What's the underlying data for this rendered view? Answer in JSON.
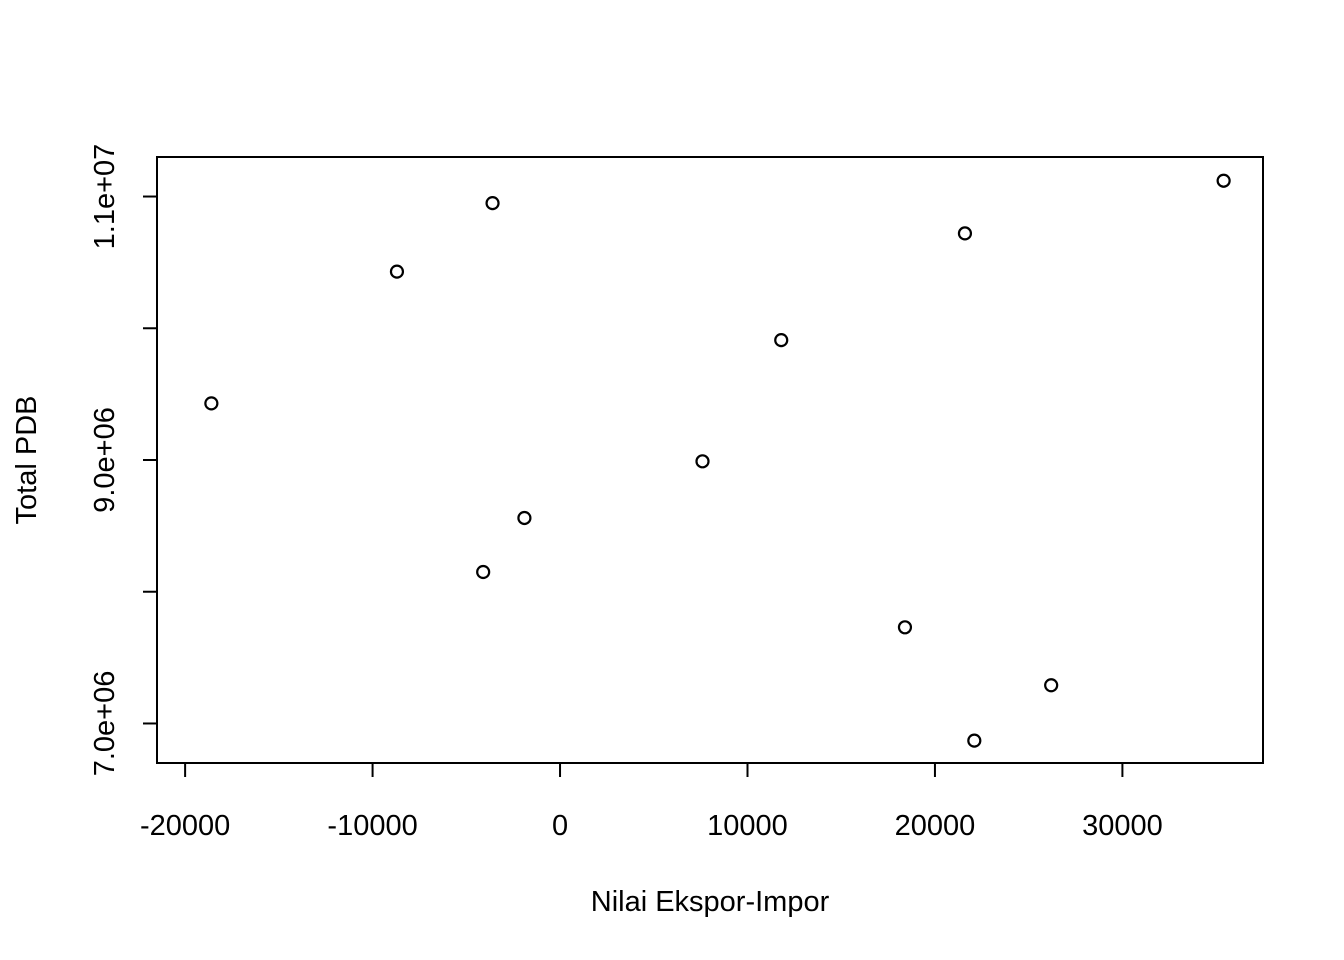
{
  "chart_data": {
    "type": "scatter",
    "title": "",
    "xlabel": "Nilai Ekspor-Impor",
    "ylabel": "Total PDB",
    "xlim": [
      -21500,
      37500
    ],
    "ylim": [
      6700000,
      11300000
    ],
    "x_ticks": [
      -20000,
      -10000,
      0,
      10000,
      20000,
      30000
    ],
    "x_tick_labels": [
      "-20000",
      "-10000",
      "0",
      "10000",
      "20000",
      "30000"
    ],
    "y_ticks": [
      7000000,
      8000000,
      9000000,
      10000000,
      11000000
    ],
    "y_tick_labels": [
      "7.0e+06",
      "",
      "9.0e+06",
      "",
      "1.1e+07"
    ],
    "grid": false,
    "points": [
      {
        "x": -18600,
        "y": 9430000
      },
      {
        "x": -8700,
        "y": 10430000
      },
      {
        "x": -3600,
        "y": 10950000
      },
      {
        "x": -4100,
        "y": 8150000
      },
      {
        "x": -1900,
        "y": 8560000
      },
      {
        "x": 7600,
        "y": 8990000
      },
      {
        "x": 11800,
        "y": 9910000
      },
      {
        "x": 18400,
        "y": 7730000
      },
      {
        "x": 21600,
        "y": 10720000
      },
      {
        "x": 22100,
        "y": 6870000
      },
      {
        "x": 26200,
        "y": 7290000
      },
      {
        "x": 35400,
        "y": 11120000
      }
    ]
  }
}
